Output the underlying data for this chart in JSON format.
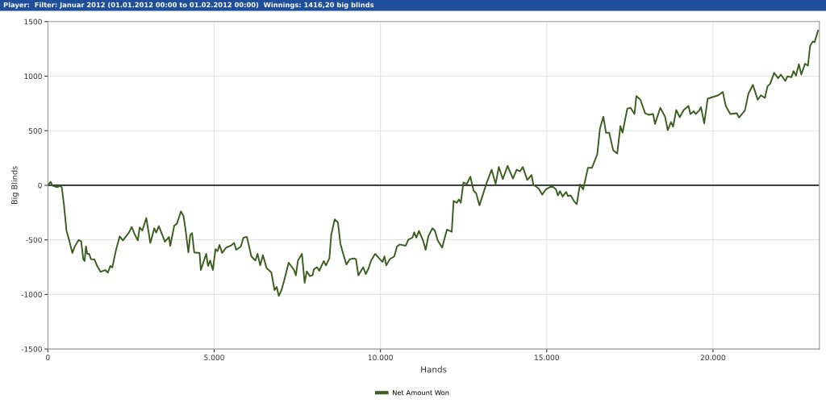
{
  "chart_data": {
    "type": "line",
    "title": "Player:  Filter: Januar 2012 (01.01.2012 00:00 to 01.02.2012 00:00)  Winnings: 1416,20 big blinds",
    "xlabel": "Hands",
    "ylabel": "Big Blinds",
    "xlim": [
      0,
      23200
    ],
    "ylim": [
      -1500,
      1500
    ],
    "xticks": [
      0,
      {
        "value": 5000,
        "label": "5.000"
      },
      {
        "value": 10000,
        "label": "10.000"
      },
      {
        "value": 15000,
        "label": "15.000"
      },
      {
        "value": 20000,
        "label": "20.000"
      }
    ],
    "yticks": [
      -1500,
      -1000,
      -500,
      0,
      500,
      1000,
      1500
    ],
    "grid": true,
    "legend": "bottom",
    "line_style": "solid",
    "ref_lines": [
      {
        "axis": "y",
        "value": 0,
        "color": "#222222",
        "line_style": "solid"
      }
    ],
    "series": [
      {
        "name": "Net Amount Won",
        "color": "#3b5e1f",
        "x": [
          0,
          80,
          144,
          280,
          360,
          416,
          480,
          560,
          640,
          736,
          800,
          920,
          1000,
          1064,
          1104,
          1144,
          1184,
          1240,
          1296,
          1400,
          1480,
          1584,
          1720,
          1800,
          1880,
          1936,
          2040,
          2160,
          2256,
          2440,
          2520,
          2600,
          2704,
          2760,
          2840,
          2960,
          3080,
          3200,
          3256,
          3336,
          3520,
          3640,
          3680,
          3800,
          3880,
          4000,
          4080,
          4144,
          4224,
          4280,
          4336,
          4400,
          4560,
          4600,
          4760,
          4816,
          4880,
          4960,
          5040,
          5104,
          5160,
          5240,
          5360,
          5520,
          5600,
          5664,
          5800,
          5880,
          5984,
          6120,
          6240,
          6304,
          6384,
          6464,
          6576,
          6720,
          6816,
          6880,
          6944,
          7024,
          7104,
          7240,
          7400,
          7456,
          7520,
          7640,
          7720,
          7784,
          7880,
          7960,
          8000,
          8096,
          8160,
          8296,
          8360,
          8464,
          8520,
          8624,
          8720,
          8800,
          8880,
          8976,
          9080,
          9200,
          9264,
          9336,
          9480,
          9560,
          9640,
          9720,
          9840,
          9984,
          10064,
          10120,
          10176,
          10280,
          10416,
          10496,
          10576,
          10760,
          10840,
          10960,
          11016,
          11080,
          11160,
          11280,
          11360,
          11440,
          11560,
          11640,
          11720,
          11856,
          12000,
          12144,
          12200,
          12296,
          12360,
          12416,
          12496,
          12600,
          12704,
          12800,
          12880,
          12976,
          13080,
          13184,
          13344,
          13464,
          13560,
          13680,
          13824,
          13904,
          13984,
          14096,
          14200,
          14280,
          14416,
          14544,
          14600,
          14760,
          14864,
          14976,
          15160,
          15280,
          15336,
          15400,
          15480,
          15584,
          15640,
          15720,
          15824,
          15904,
          16000,
          16096,
          16240,
          16360,
          16520,
          16600,
          16704,
          16784,
          16880,
          17000,
          17120,
          17216,
          17280,
          17424,
          17520,
          17640,
          17696,
          17816,
          17960,
          18064,
          18200,
          18256,
          18416,
          18560,
          18640,
          18736,
          18800,
          18896,
          19000,
          19120,
          19264,
          19320,
          19424,
          19480,
          19584,
          19640,
          19736,
          19840,
          19984,
          20160,
          20296,
          20384,
          20520,
          20720,
          20784,
          20960,
          21064,
          21200,
          21344,
          21440,
          21560,
          21640,
          21720,
          21840,
          21960,
          22040,
          22176,
          22240,
          22360,
          22424,
          22496,
          22584,
          22656,
          22768,
          22856,
          22920,
          23000,
          23056,
          23160
        ],
        "values": [
          0,
          32,
          -5,
          -17,
          -7,
          -17,
          -172,
          -418,
          -505,
          -620,
          -566,
          -502,
          -512,
          -677,
          -694,
          -559,
          -628,
          -628,
          -677,
          -679,
          -739,
          -793,
          -776,
          -800,
          -739,
          -753,
          -603,
          -468,
          -505,
          -431,
          -382,
          -443,
          -505,
          -386,
          -414,
          -300,
          -529,
          -394,
          -433,
          -374,
          -517,
          -473,
          -554,
          -369,
          -352,
          -239,
          -283,
          -418,
          -615,
          -455,
          -438,
          -615,
          -620,
          -776,
          -628,
          -739,
          -689,
          -776,
          -586,
          -603,
          -547,
          -620,
          -571,
          -549,
          -529,
          -591,
          -561,
          -480,
          -472,
          -652,
          -689,
          -628,
          -734,
          -640,
          -758,
          -800,
          -960,
          -931,
          -1014,
          -960,
          -874,
          -709,
          -776,
          -825,
          -689,
          -628,
          -894,
          -788,
          -832,
          -825,
          -768,
          -751,
          -783,
          -694,
          -734,
          -670,
          -455,
          -312,
          -340,
          -542,
          -628,
          -726,
          -677,
          -670,
          -677,
          -825,
          -751,
          -813,
          -763,
          -689,
          -628,
          -677,
          -702,
          -652,
          -734,
          -677,
          -652,
          -561,
          -542,
          -554,
          -497,
          -480,
          -431,
          -480,
          -418,
          -505,
          -591,
          -468,
          -394,
          -418,
          -505,
          -571,
          -406,
          -426,
          -143,
          -160,
          -130,
          -160,
          25,
          13,
          79,
          -49,
          -74,
          -184,
          -86,
          13,
          143,
          13,
          168,
          57,
          178,
          119,
          62,
          143,
          128,
          168,
          49,
          94,
          5,
          -30,
          -86,
          -37,
          -7,
          -37,
          -93,
          -54,
          -103,
          -61,
          -98,
          -93,
          -147,
          -172,
          8,
          -37,
          160,
          160,
          284,
          518,
          628,
          481,
          481,
          320,
          291,
          542,
          481,
          702,
          710,
          653,
          818,
          784,
          660,
          646,
          653,
          562,
          710,
          628,
          505,
          579,
          537,
          690,
          623,
          690,
          727,
          653,
          678,
          653,
          685,
          715,
          567,
          793,
          808,
          825,
          855,
          727,
          653,
          660,
          621,
          685,
          838,
          921,
          784,
          825,
          801,
          907,
          931,
          1030,
          981,
          1015,
          956,
          998,
          990,
          1047,
          1005,
          1109,
          1015,
          1114,
          1096,
          1276,
          1318,
          1311,
          1417
        ]
      }
    ]
  }
}
